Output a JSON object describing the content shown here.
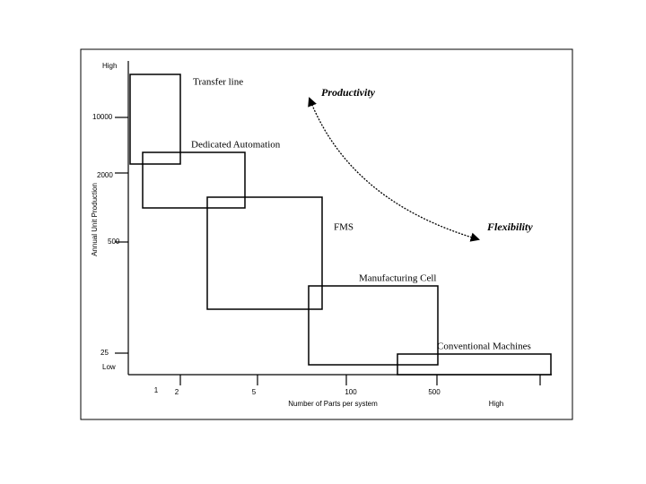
{
  "y_axis": {
    "title": "Annual Unit Production",
    "ticks": [
      "High",
      "10000",
      "2000",
      "500",
      "25",
      "Low"
    ]
  },
  "x_axis": {
    "title": "Number of Parts per system",
    "ticks": [
      "1",
      "2",
      "5",
      "100",
      "500",
      "High"
    ]
  },
  "systems": [
    "Transfer line",
    "Dedicated Automation",
    "FMS",
    "Manufacturing Cell",
    "Conventional Machines"
  ],
  "arrow": {
    "start": "Productivity",
    "end": "Flexibility"
  }
}
